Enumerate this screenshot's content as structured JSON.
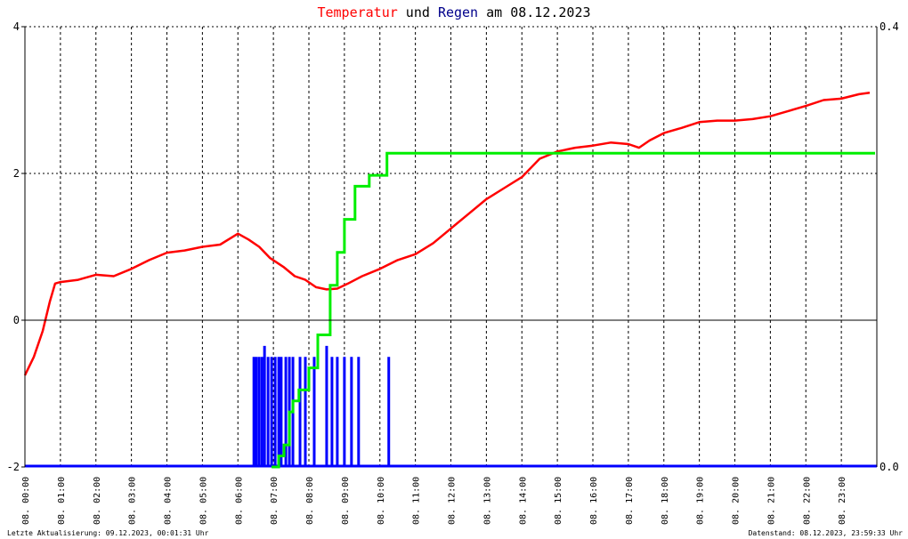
{
  "title": {
    "part1": "Temperatur",
    "part2": " und ",
    "part3": "Regen",
    "part4": " am 08.12.2023",
    "color1": "#ff0000",
    "color2": "#000000",
    "color3": "#00008b",
    "color4": "#000000"
  },
  "footer": {
    "left": "Letzte Aktualisierung: 09.12.2023, 00:01:31 Uhr",
    "right": "Datenstand: 08.12.2023, 23:59:33 Uhr"
  },
  "chart_data": {
    "type": "line",
    "x_unit": "hours",
    "xlim": [
      0,
      24
    ],
    "ylim_left": [
      -2,
      4
    ],
    "ylim_right": [
      0.0,
      0.4
    ],
    "y_ticks_left": [
      "4",
      "2",
      "0",
      "-2"
    ],
    "y_ticks_right": [
      "0.4",
      "0.0"
    ],
    "x_tick_labels": [
      "08. 00:00",
      "08. 01:00",
      "08. 02:00",
      "08. 03:00",
      "08. 04:00",
      "08. 05:00",
      "08. 06:00",
      "08. 07:00",
      "08. 08:00",
      "08. 09:00",
      "08. 10:00",
      "08. 11:00",
      "08. 12:00",
      "08. 13:00",
      "08. 14:00",
      "08. 15:00",
      "08. 16:00",
      "08. 17:00",
      "08. 18:00",
      "08. 19:00",
      "08. 20:00",
      "08. 21:00",
      "08. 22:00",
      "08. 23:00"
    ],
    "grid": true,
    "colors": {
      "temperature": "#ff0000",
      "rain_sum": "#00ee00",
      "rain_bars": "#0000ff",
      "zero_line": "#000000"
    },
    "series": [
      {
        "axis": "left",
        "x": [
          0.0,
          0.25,
          0.5,
          0.7,
          0.85,
          1.0,
          1.5,
          2.0,
          2.5,
          3.0,
          3.5,
          4.0,
          4.5,
          5.0,
          5.5,
          6.0,
          6.3,
          6.6,
          6.9,
          7.3,
          7.6,
          7.9,
          8.2,
          8.5,
          8.8,
          9.1,
          9.5,
          10.0,
          10.5,
          11.0,
          11.5,
          12.0,
          12.5,
          13.0,
          13.5,
          14.0,
          14.5,
          15.0,
          15.5,
          16.0,
          16.5,
          17.0,
          17.3,
          17.6,
          18.0,
          18.5,
          19.0,
          19.5,
          20.0,
          20.5,
          21.0,
          21.5,
          22.0,
          22.5,
          23.0,
          23.5,
          23.8
        ],
        "y": [
          -0.75,
          -0.5,
          -0.15,
          0.25,
          0.5,
          0.52,
          0.55,
          0.62,
          0.6,
          0.7,
          0.82,
          0.92,
          0.95,
          1.0,
          1.03,
          1.18,
          1.1,
          1.0,
          0.85,
          0.72,
          0.6,
          0.55,
          0.45,
          0.42,
          0.43,
          0.5,
          0.6,
          0.7,
          0.82,
          0.9,
          1.05,
          1.25,
          1.45,
          1.65,
          1.8,
          1.95,
          2.2,
          2.3,
          2.35,
          2.38,
          2.42,
          2.4,
          2.35,
          2.45,
          2.55,
          2.62,
          2.7,
          2.72,
          2.72,
          2.74,
          2.78,
          2.85,
          2.92,
          3.0,
          3.02,
          3.08,
          3.1
        ]
      },
      {
        "axis": "right",
        "x": [
          6.95,
          7.15,
          7.3,
          7.45,
          7.55,
          7.72,
          8.0,
          8.25,
          8.6,
          8.8,
          9.0,
          9.3,
          9.7,
          10.2,
          10.6,
          11.0,
          12.0,
          13.0,
          14.0,
          15.0,
          16.0,
          17.0,
          18.0,
          19.0,
          20.0,
          21.0,
          22.0,
          23.0,
          23.95
        ],
        "y": [
          0.0,
          0.01,
          0.02,
          0.05,
          0.06,
          0.07,
          0.09,
          0.12,
          0.165,
          0.195,
          0.225,
          0.255,
          0.265,
          0.285,
          0.285,
          0.285,
          0.285,
          0.285,
          0.285,
          0.285,
          0.285,
          0.285,
          0.285,
          0.285,
          0.285,
          0.285,
          0.285,
          0.285,
          0.285
        ]
      },
      {
        "axis": "left",
        "kind": "bars",
        "x": [
          6.45,
          6.52,
          6.6,
          6.68,
          6.75,
          6.85,
          6.95,
          7.05,
          7.15,
          7.22,
          7.35,
          7.45,
          7.55,
          7.75,
          7.9,
          8.15,
          8.5,
          8.65,
          8.8,
          9.0,
          9.2,
          9.4,
          10.25
        ],
        "y": [
          -0.5,
          -0.5,
          -0.5,
          -0.5,
          -0.35,
          -0.5,
          -0.5,
          -0.5,
          -0.5,
          -0.5,
          -0.5,
          -0.5,
          -0.5,
          -0.5,
          -0.5,
          -0.5,
          -0.35,
          -0.5,
          -0.5,
          -0.5,
          -0.5,
          -0.5,
          -0.5
        ]
      }
    ]
  }
}
